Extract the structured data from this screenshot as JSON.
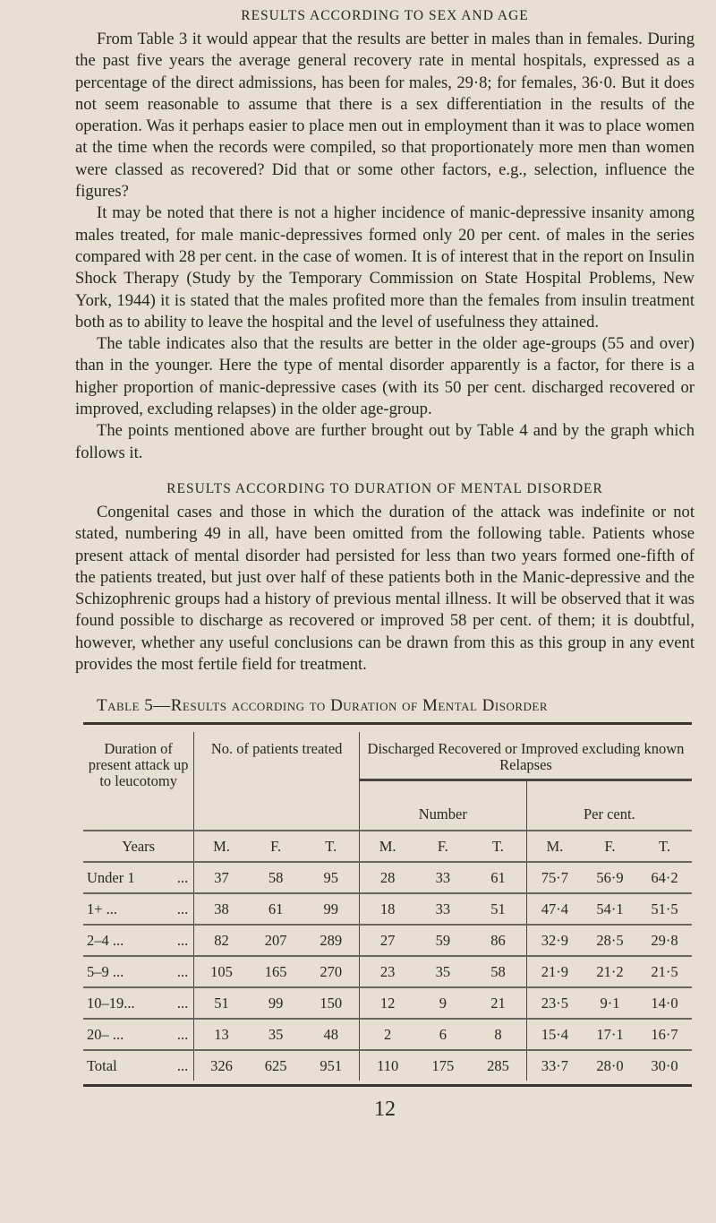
{
  "heading1": "RESULTS ACCORDING TO SEX AND AGE",
  "paragraphs1": [
    "From Table 3 it would appear that the results are better in males than in females. During the past five years the average general recovery rate in mental hospitals, expressed as a percentage of the direct admissions, has been for males, 29·8; for females, 36·0. But it does not seem reasonable to assume that there is a sex differentiation in the results of the operation. Was it perhaps easier to place men out in employment than it was to place women at the time when the records were compiled, so that proportionately more men than women were classed as recovered? Did that or some other factors, e.g., selection, influence the figures?",
    "It may be noted that there is not a higher incidence of manic-depressive insanity among males treated, for male manic-depressives formed only 20 per cent. of males in the series compared with 28 per cent. in the case of women. It is of interest that in the report on Insulin Shock Therapy (Study by the Temporary Commission on State Hospital Problems, New York, 1944) it is stated that the males profited more than the females from insulin treatment both as to ability to leave the hospital and the level of usefulness they attained.",
    "The table indicates also that the results are better in the older age-groups (55 and over) than in the younger. Here the type of mental disorder apparently is a factor, for there is a higher proportion of manic-depressive cases (with its 50 per cent. discharged recovered or improved, excluding relapses) in the older age-group.",
    "The points mentioned above are further brought out by Table 4 and by the graph which follows it."
  ],
  "heading2": "RESULTS ACCORDING TO DURATION OF MENTAL DISORDER",
  "paragraph2": "Congenital cases and those in which the duration of the attack was indefinite or not stated, numbering 49 in all, have been omitted from the following table. Patients whose present attack of mental disorder had persisted for less than two years formed one-fifth of the patients treated, but just over half of these patients both in the Manic-depressive and the Schizophrenic groups had a history of previous mental illness. It will be observed that it was found possible to discharge as recovered or improved 58 per cent. of them; it is doubtful, however, whether any useful conclusions can be drawn from this as this group in any event provides the most fertile field for treatment.",
  "table": {
    "caption": "Table 5—Results according to Duration of Mental Disorder",
    "col1": "Duration of present attack up to leucotomy",
    "col2": "No. of patients treated",
    "col3": "Discharged Recovered or Improved excluding known Relapses",
    "sub_number": "Number",
    "sub_percent": "Per cent.",
    "years": "Years",
    "mft": [
      "M.",
      "F.",
      "T."
    ],
    "rows": [
      {
        "label": "Under 1",
        "dots": "...",
        "v": [
          "37",
          "58",
          "95",
          "28",
          "33",
          "61",
          "75·7",
          "56·9",
          "64·2"
        ]
      },
      {
        "label": "1+ ...",
        "dots": "...",
        "v": [
          "38",
          "61",
          "99",
          "18",
          "33",
          "51",
          "47·4",
          "54·1",
          "51·5"
        ]
      },
      {
        "label": "2–4 ...",
        "dots": "...",
        "v": [
          "82",
          "207",
          "289",
          "27",
          "59",
          "86",
          "32·9",
          "28·5",
          "29·8"
        ]
      },
      {
        "label": "5–9 ...",
        "dots": "...",
        "v": [
          "105",
          "165",
          "270",
          "23",
          "35",
          "58",
          "21·9",
          "21·2",
          "21·5"
        ]
      },
      {
        "label": "10–19...",
        "dots": "...",
        "v": [
          "51",
          "99",
          "150",
          "12",
          "9",
          "21",
          "23·5",
          "9·1",
          "14·0"
        ]
      },
      {
        "label": "20– ...",
        "dots": "...",
        "v": [
          "13",
          "35",
          "48",
          "2",
          "6",
          "8",
          "15·4",
          "17·1",
          "16·7"
        ]
      },
      {
        "label": "Total",
        "dots": "...",
        "v": [
          "326",
          "625",
          "951",
          "110",
          "175",
          "285",
          "33·7",
          "28·0",
          "30·0"
        ]
      }
    ]
  },
  "page_number": "12"
}
